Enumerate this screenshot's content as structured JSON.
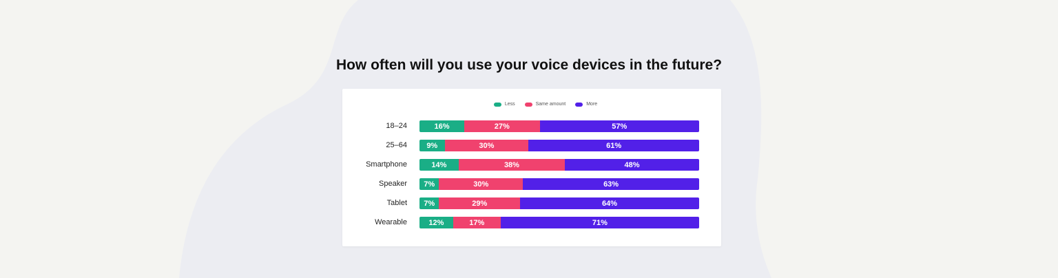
{
  "chart_data": {
    "type": "bar",
    "orientation": "horizontal-stacked-100",
    "title": "How often will you use your voice devices in the future?",
    "categories": [
      "18–24",
      "25–64",
      "Smartphone",
      "Speaker",
      "Tablet",
      "Wearable"
    ],
    "series": [
      {
        "name": "Less",
        "color": "#1aae86",
        "values": [
          16,
          9,
          14,
          7,
          7,
          12
        ]
      },
      {
        "name": "Same amount",
        "color": "#f0426e",
        "values": [
          27,
          30,
          38,
          30,
          29,
          17
        ]
      },
      {
        "name": "More",
        "color": "#5220e8",
        "values": [
          57,
          61,
          48,
          63,
          64,
          71
        ]
      }
    ],
    "legend": "top",
    "xlim": [
      0,
      100
    ],
    "grid": false
  }
}
